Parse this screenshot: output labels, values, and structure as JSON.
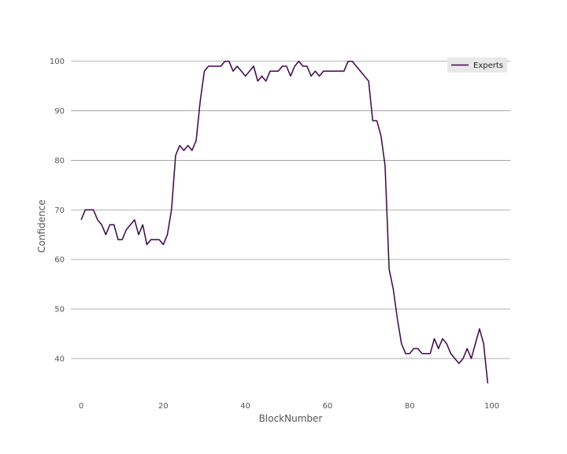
{
  "chart_data": {
    "type": "line",
    "title": "",
    "xlabel": "BlockNumber",
    "ylabel": "Confidence",
    "xlim": [
      -2.5,
      104.5
    ],
    "ylim": [
      32.5,
      102.5
    ],
    "xticks": [
      0,
      20,
      40,
      60,
      80,
      100
    ],
    "yticks": [
      40,
      50,
      60,
      70,
      80,
      90,
      100
    ],
    "grid": "horizontal",
    "legend": "top-right",
    "colors": {
      "series": "#440154",
      "grid": "#999999",
      "legend_bg": "#e8e8e8"
    },
    "series": [
      {
        "name": "Experts",
        "x": [
          0,
          1,
          2,
          3,
          4,
          5,
          6,
          7,
          8,
          9,
          10,
          11,
          12,
          13,
          14,
          15,
          16,
          17,
          18,
          19,
          20,
          21,
          22,
          23,
          24,
          25,
          26,
          27,
          28,
          29,
          30,
          31,
          32,
          33,
          34,
          35,
          36,
          37,
          38,
          39,
          40,
          41,
          42,
          43,
          44,
          45,
          46,
          47,
          48,
          49,
          50,
          51,
          52,
          53,
          54,
          55,
          56,
          57,
          58,
          59,
          60,
          61,
          62,
          63,
          64,
          65,
          66,
          67,
          68,
          69,
          70,
          71,
          72,
          73,
          74,
          75,
          76,
          77,
          78,
          79,
          80,
          81,
          82,
          83,
          84,
          85,
          86,
          87,
          88,
          89,
          90,
          91,
          92,
          93,
          94,
          95,
          96,
          97,
          98,
          99
        ],
        "y": [
          68,
          70,
          70,
          70,
          68,
          67,
          65,
          67,
          67,
          64,
          64,
          66,
          67,
          68,
          65,
          67,
          63,
          64,
          64,
          64,
          63,
          65,
          70,
          81,
          83,
          82,
          83,
          82,
          84,
          92,
          98,
          99,
          99,
          99,
          99,
          100,
          100,
          98,
          99,
          98,
          97,
          98,
          99,
          96,
          97,
          96,
          98,
          98,
          98,
          99,
          99,
          97,
          99,
          100,
          99,
          99,
          97,
          98,
          97,
          98,
          98,
          98,
          98,
          98,
          98,
          100,
          100,
          99,
          98,
          97,
          96,
          88,
          88,
          85,
          79,
          58,
          54,
          48,
          43,
          41,
          41,
          42,
          42,
          41,
          41,
          41,
          44,
          42,
          44,
          43,
          41,
          40,
          39,
          40,
          42,
          40,
          43,
          46,
          43,
          35
        ]
      }
    ]
  }
}
